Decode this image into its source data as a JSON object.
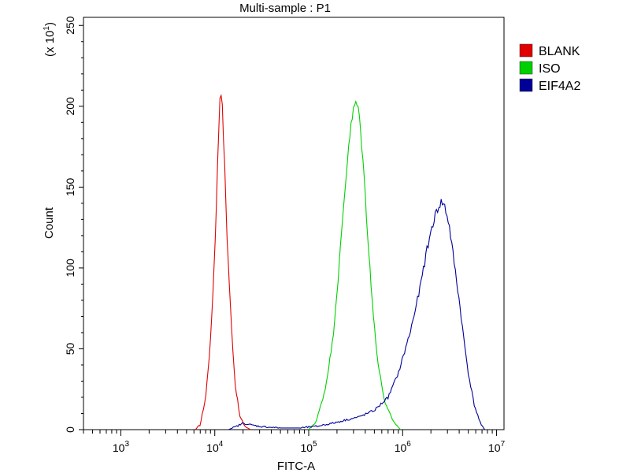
{
  "chart_data": {
    "type": "line",
    "title": "Multi-sample : P1",
    "xlabel": "FITC-A",
    "ylabel": "Count",
    "y_multiplier_label": {
      "prefix": "(x 10",
      "exp": "1",
      "suffix": ")"
    },
    "x_scale": "log",
    "xlim": [
      400,
      12000000
    ],
    "ylim": [
      0,
      255
    ],
    "x_ticks": [
      {
        "value": 1000,
        "base": "10",
        "exp": "3"
      },
      {
        "value": 10000,
        "base": "10",
        "exp": "4"
      },
      {
        "value": 100000,
        "base": "10",
        "exp": "5"
      },
      {
        "value": 1000000,
        "base": "10",
        "exp": "6"
      },
      {
        "value": 10000000,
        "base": "10",
        "exp": "7"
      }
    ],
    "y_ticks": [
      "0",
      "50",
      "100",
      "150",
      "200",
      "250"
    ],
    "y_tick_values": [
      0,
      50,
      100,
      150,
      200,
      250
    ],
    "grid": false,
    "legend_position": "top-right, outside plot",
    "series": [
      {
        "name": "BLANK",
        "color": "#e00000",
        "points": [
          [
            6200,
            0
          ],
          [
            7000,
            3
          ],
          [
            8000,
            20
          ],
          [
            9000,
            55
          ],
          [
            10000,
            110
          ],
          [
            10800,
            170
          ],
          [
            11300,
            205
          ],
          [
            11600,
            212
          ],
          [
            12000,
            200
          ],
          [
            12600,
            170
          ],
          [
            13500,
            120
          ],
          [
            15000,
            65
          ],
          [
            16500,
            28
          ],
          [
            18500,
            8
          ],
          [
            21000,
            2
          ],
          [
            24000,
            0
          ]
        ]
      },
      {
        "name": "ISO",
        "color": "#00d000",
        "points": [
          [
            100000,
            0
          ],
          [
            120000,
            5
          ],
          [
            150000,
            25
          ],
          [
            180000,
            55
          ],
          [
            210000,
            100
          ],
          [
            240000,
            145
          ],
          [
            270000,
            180
          ],
          [
            300000,
            198
          ],
          [
            320000,
            203
          ],
          [
            345000,
            195
          ],
          [
            380000,
            165
          ],
          [
            420000,
            125
          ],
          [
            480000,
            75
          ],
          [
            550000,
            40
          ],
          [
            650000,
            16
          ],
          [
            800000,
            5
          ],
          [
            950000,
            0
          ]
        ]
      },
      {
        "name": "EIF4A2",
        "color": "#000099",
        "points": [
          [
            14000,
            0
          ],
          [
            17000,
            2
          ],
          [
            20000,
            4
          ],
          [
            24000,
            3
          ],
          [
            30000,
            2
          ],
          [
            50000,
            1
          ],
          [
            80000,
            1
          ],
          [
            120000,
            2
          ],
          [
            180000,
            4
          ],
          [
            250000,
            6
          ],
          [
            350000,
            8
          ],
          [
            500000,
            12
          ],
          [
            700000,
            20
          ],
          [
            900000,
            35
          ],
          [
            1200000,
            60
          ],
          [
            1500000,
            85
          ],
          [
            1800000,
            110
          ],
          [
            2100000,
            128
          ],
          [
            2400000,
            138
          ],
          [
            2600000,
            141
          ],
          [
            2800000,
            138
          ],
          [
            3100000,
            128
          ],
          [
            3500000,
            105
          ],
          [
            4000000,
            80
          ],
          [
            4500000,
            55
          ],
          [
            5000000,
            35
          ],
          [
            5800000,
            15
          ],
          [
            6800000,
            3
          ],
          [
            7500000,
            0
          ]
        ]
      }
    ]
  }
}
